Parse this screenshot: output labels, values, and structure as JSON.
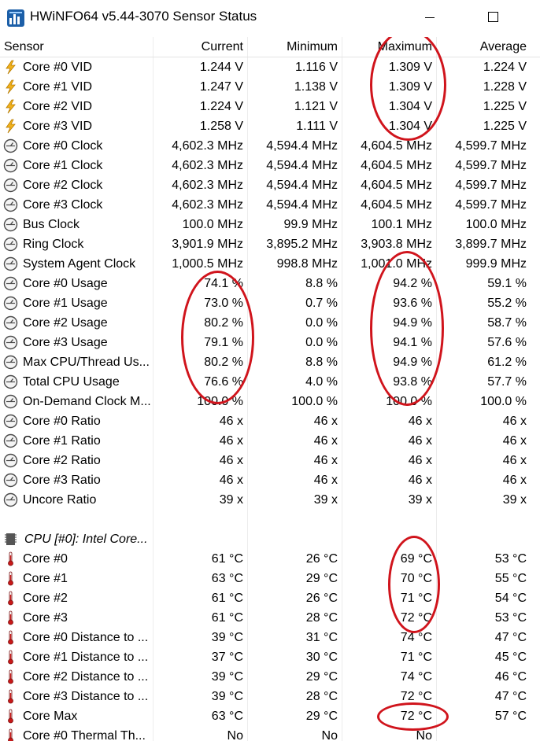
{
  "window": {
    "title": "HWiNFO64 v5.44-3070 Sensor Status",
    "icon": "hwinfo-app-icon",
    "accent": "#1c5fa8"
  },
  "columns": [
    "Sensor",
    "Current",
    "Minimum",
    "Maximum",
    "Average"
  ],
  "rows": [
    {
      "icon": "voltage-bolt-icon",
      "name": "Core #0 VID",
      "current": "1.244 V",
      "minimum": "1.116 V",
      "maximum": "1.309 V",
      "average": "1.224 V"
    },
    {
      "icon": "voltage-bolt-icon",
      "name": "Core #1 VID",
      "current": "1.247 V",
      "minimum": "1.138 V",
      "maximum": "1.309 V",
      "average": "1.228 V"
    },
    {
      "icon": "voltage-bolt-icon",
      "name": "Core #2 VID",
      "current": "1.224 V",
      "minimum": "1.121 V",
      "maximum": "1.304 V",
      "average": "1.225 V"
    },
    {
      "icon": "voltage-bolt-icon",
      "name": "Core #3 VID",
      "current": "1.258 V",
      "minimum": "1.111 V",
      "maximum": "1.304 V",
      "average": "1.225 V"
    },
    {
      "icon": "gauge-icon",
      "name": "Core #0 Clock",
      "current": "4,602.3 MHz",
      "minimum": "4,594.4 MHz",
      "maximum": "4,604.5 MHz",
      "average": "4,599.7 MHz"
    },
    {
      "icon": "gauge-icon",
      "name": "Core #1 Clock",
      "current": "4,602.3 MHz",
      "minimum": "4,594.4 MHz",
      "maximum": "4,604.5 MHz",
      "average": "4,599.7 MHz"
    },
    {
      "icon": "gauge-icon",
      "name": "Core #2 Clock",
      "current": "4,602.3 MHz",
      "minimum": "4,594.4 MHz",
      "maximum": "4,604.5 MHz",
      "average": "4,599.7 MHz"
    },
    {
      "icon": "gauge-icon",
      "name": "Core #3 Clock",
      "current": "4,602.3 MHz",
      "minimum": "4,594.4 MHz",
      "maximum": "4,604.5 MHz",
      "average": "4,599.7 MHz"
    },
    {
      "icon": "gauge-icon",
      "name": "Bus Clock",
      "current": "100.0 MHz",
      "minimum": "99.9 MHz",
      "maximum": "100.1 MHz",
      "average": "100.0 MHz"
    },
    {
      "icon": "gauge-icon",
      "name": "Ring Clock",
      "current": "3,901.9 MHz",
      "minimum": "3,895.2 MHz",
      "maximum": "3,903.8 MHz",
      "average": "3,899.7 MHz"
    },
    {
      "icon": "gauge-icon",
      "name": "System Agent Clock",
      "current": "1,000.5 MHz",
      "minimum": "998.8 MHz",
      "maximum": "1,001.0 MHz",
      "average": "999.9 MHz"
    },
    {
      "icon": "gauge-icon",
      "name": "Core #0 Usage",
      "current": "74.1 %",
      "minimum": "8.8 %",
      "maximum": "94.2 %",
      "average": "59.1 %"
    },
    {
      "icon": "gauge-icon",
      "name": "Core #1 Usage",
      "current": "73.0 %",
      "minimum": "0.7 %",
      "maximum": "93.6 %",
      "average": "55.2 %"
    },
    {
      "icon": "gauge-icon",
      "name": "Core #2 Usage",
      "current": "80.2 %",
      "minimum": "0.0 %",
      "maximum": "94.9 %",
      "average": "58.7 %"
    },
    {
      "icon": "gauge-icon",
      "name": "Core #3 Usage",
      "current": "79.1 %",
      "minimum": "0.0 %",
      "maximum": "94.1 %",
      "average": "57.6 %"
    },
    {
      "icon": "gauge-icon",
      "name": "Max CPU/Thread Us...",
      "current": "80.2 %",
      "minimum": "8.8 %",
      "maximum": "94.9 %",
      "average": "61.2 %"
    },
    {
      "icon": "gauge-icon",
      "name": "Total CPU Usage",
      "current": "76.6 %",
      "minimum": "4.0 %",
      "maximum": "93.8 %",
      "average": "57.7 %"
    },
    {
      "icon": "gauge-icon",
      "name": "On-Demand Clock M...",
      "current": "100.0 %",
      "minimum": "100.0 %",
      "maximum": "100.0 %",
      "average": "100.0 %"
    },
    {
      "icon": "gauge-icon",
      "name": "Core #0 Ratio",
      "current": "46 x",
      "minimum": "46 x",
      "maximum": "46 x",
      "average": "46 x"
    },
    {
      "icon": "gauge-icon",
      "name": "Core #1 Ratio",
      "current": "46 x",
      "minimum": "46 x",
      "maximum": "46 x",
      "average": "46 x"
    },
    {
      "icon": "gauge-icon",
      "name": "Core #2 Ratio",
      "current": "46 x",
      "minimum": "46 x",
      "maximum": "46 x",
      "average": "46 x"
    },
    {
      "icon": "gauge-icon",
      "name": "Core #3 Ratio",
      "current": "46 x",
      "minimum": "46 x",
      "maximum": "46 x",
      "average": "46 x"
    },
    {
      "icon": "gauge-icon",
      "name": "Uncore Ratio",
      "current": "39 x",
      "minimum": "39 x",
      "maximum": "39 x",
      "average": "39 x"
    },
    {
      "type": "spacer"
    },
    {
      "type": "group",
      "icon": "cpu-chip-icon",
      "name": "CPU [#0]: Intel Core..."
    },
    {
      "icon": "thermometer-icon",
      "name": "Core #0",
      "current": "61 °C",
      "minimum": "26 °C",
      "maximum": "69 °C",
      "average": "53 °C"
    },
    {
      "icon": "thermometer-icon",
      "name": "Core #1",
      "current": "63 °C",
      "minimum": "29 °C",
      "maximum": "70 °C",
      "average": "55 °C"
    },
    {
      "icon": "thermometer-icon",
      "name": "Core #2",
      "current": "61 °C",
      "minimum": "26 °C",
      "maximum": "71 °C",
      "average": "54 °C"
    },
    {
      "icon": "thermometer-icon",
      "name": "Core #3",
      "current": "61 °C",
      "minimum": "28 °C",
      "maximum": "72 °C",
      "average": "53 °C"
    },
    {
      "icon": "thermometer-icon",
      "name": "Core #0 Distance to ...",
      "current": "39 °C",
      "minimum": "31 °C",
      "maximum": "74 °C",
      "average": "47 °C"
    },
    {
      "icon": "thermometer-icon",
      "name": "Core #1 Distance to ...",
      "current": "37 °C",
      "minimum": "30 °C",
      "maximum": "71 °C",
      "average": "45 °C"
    },
    {
      "icon": "thermometer-icon",
      "name": "Core #2 Distance to ...",
      "current": "39 °C",
      "minimum": "29 °C",
      "maximum": "74 °C",
      "average": "46 °C"
    },
    {
      "icon": "thermometer-icon",
      "name": "Core #3 Distance to ...",
      "current": "39 °C",
      "minimum": "28 °C",
      "maximum": "72 °C",
      "average": "47 °C"
    },
    {
      "icon": "thermometer-icon",
      "name": "Core Max",
      "current": "63 °C",
      "minimum": "29 °C",
      "maximum": "72 °C",
      "average": "57 °C"
    },
    {
      "icon": "thermometer-icon",
      "name": "Core #0 Thermal Th...",
      "current": "No",
      "minimum": "No",
      "maximum": "No",
      "average": ""
    }
  ],
  "annotation_color": "#d0141c"
}
